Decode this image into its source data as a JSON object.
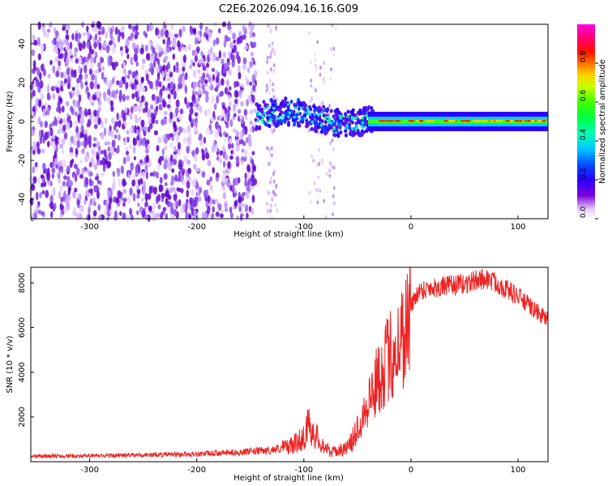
{
  "title": "C2E6.2026.094.16.16.G09",
  "top_panel": {
    "type": "heatmap",
    "xlabel": "Height of straight line (km)",
    "ylabel": "Frequency (Hz)",
    "xlim": [
      -355,
      128
    ],
    "ylim": [
      -50,
      50
    ],
    "x_ticks": [
      -300,
      -200,
      -100,
      0,
      100
    ],
    "y_ticks": [
      -40,
      -20,
      0,
      20,
      40
    ],
    "colorbar": {
      "label": "Normalized spectral amplitude",
      "range": [
        0,
        1
      ],
      "ticks": [
        0.0,
        0.2,
        0.4,
        0.6,
        0.8
      ],
      "colormap": "gist_ncar-like: white, violet, blue, cyan, green, yellow, red, magenta"
    }
  },
  "chart_data": {
    "type": "line",
    "xlabel": "Height of straight line (km)",
    "ylabel": "SNR (10 * v/v)",
    "xlim": [
      -355,
      128
    ],
    "ylim": [
      0,
      8700
    ],
    "x_ticks": [
      -300,
      -200,
      -100,
      0,
      100
    ],
    "y_ticks": [
      2000,
      4000,
      6000,
      8000
    ],
    "color": "#ee2222",
    "series": [
      {
        "x": [
          -355,
          -300,
          -250,
          -200,
          -160,
          -130,
          -110,
          -100,
          -95,
          -90,
          -85,
          -80,
          -75,
          -70,
          -60,
          -55,
          -50,
          -45,
          -40,
          -35,
          -30,
          -25,
          -20,
          -15,
          -10,
          -5,
          0,
          5,
          10,
          15,
          20,
          25,
          30,
          40,
          50,
          60,
          70,
          80,
          90,
          100,
          110,
          115,
          120,
          125,
          128
        ],
        "values": [
          250,
          260,
          300,
          340,
          420,
          520,
          750,
          1100,
          1700,
          1250,
          900,
          650,
          420,
          480,
          600,
          900,
          1500,
          2100,
          2700,
          3200,
          3800,
          4300,
          4700,
          5000,
          5400,
          6000,
          6900,
          7500,
          7700,
          7750,
          7800,
          7800,
          7850,
          7900,
          7950,
          8100,
          8200,
          8000,
          7700,
          7400,
          7000,
          6800,
          6600,
          6500,
          6300
        ]
      }
    ]
  }
}
